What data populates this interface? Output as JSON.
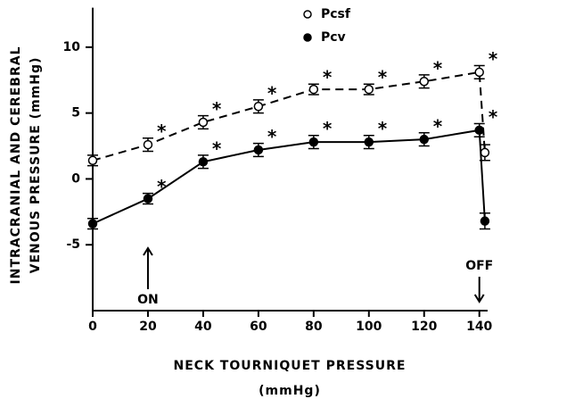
{
  "chart_data": {
    "type": "line",
    "x_label": [
      "NECK TOURNIQUET PRESSURE",
      "(mmHg)"
    ],
    "y_label": [
      "INTRACRANIAL AND CEREBRAL",
      "VENOUS PRESSURE (mmHg)"
    ],
    "x": [
      0,
      20,
      40,
      60,
      80,
      100,
      120,
      140,
      142
    ],
    "series": [
      {
        "name": "Pcsf",
        "color": "#000000",
        "marker": "open",
        "dashed": true,
        "values": [
          1.4,
          2.6,
          4.3,
          5.5,
          6.8,
          6.8,
          7.4,
          8.1,
          2.0
        ],
        "errors": [
          0.4,
          0.5,
          0.5,
          0.5,
          0.4,
          0.4,
          0.5,
          0.5,
          0.6
        ],
        "labels": [
          null,
          "*",
          "*",
          "*",
          "*",
          "*",
          "*",
          "*",
          null
        ]
      },
      {
        "name": "Pcv",
        "color": "#000000",
        "marker": "filled",
        "dashed": false,
        "values": [
          -3.4,
          -1.5,
          1.3,
          2.2,
          2.8,
          2.8,
          3.0,
          3.7,
          -3.2
        ],
        "errors": [
          0.4,
          0.4,
          0.5,
          0.5,
          0.5,
          0.5,
          0.5,
          0.5,
          0.6
        ],
        "labels": [
          null,
          "*",
          "*",
          "*",
          "*",
          "*",
          "*",
          "*",
          null
        ]
      }
    ],
    "annotations": [
      {
        "text": "ON",
        "x": 20
      },
      {
        "text": "OFF",
        "x": 140
      }
    ],
    "xlim": [
      0,
      143
    ],
    "xticks": [
      0,
      20,
      40,
      60,
      80,
      100,
      120,
      140
    ],
    "ylim": [
      -10,
      13
    ],
    "yticks": [
      -5,
      0,
      5,
      10
    ],
    "legend": "top"
  }
}
